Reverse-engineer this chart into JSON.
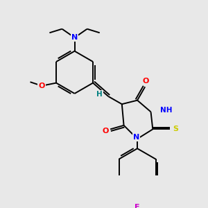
{
  "background_color": "#e8e8e8",
  "bond_color": "#000000",
  "atom_colors": {
    "N": "#0000ff",
    "O": "#ff0000",
    "S": "#cccc00",
    "F": "#cc00cc",
    "H": "#008080",
    "C": "#000000"
  },
  "figsize": [
    3.0,
    3.0
  ],
  "dpi": 100
}
